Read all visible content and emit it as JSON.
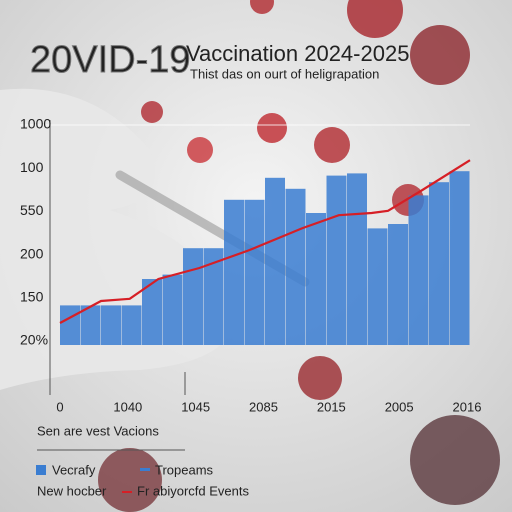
{
  "chart_data": {
    "type": "bar-line",
    "title_prefix": "20VID-19",
    "title": "Vaccination 2024-2025",
    "subtitle": "Thist das on ourt of heligrapation",
    "y_axis_labels": [
      "1000",
      "100",
      "550",
      "200",
      "150",
      "20%"
    ],
    "x_axis_labels": [
      "0",
      "1040",
      "1045",
      "2085",
      "2015",
      "2005",
      "2016"
    ],
    "ylim": [
      0,
      100
    ],
    "xlim": [
      0,
      100
    ],
    "grid": true,
    "series": [
      {
        "name": "Vecrafy",
        "color": "#3a7dd1",
        "kind": "bar",
        "values": [
          18,
          18,
          18,
          18,
          30,
          32,
          44,
          44,
          66,
          66,
          76,
          71,
          60,
          77,
          78,
          53,
          55,
          68,
          74,
          79
        ]
      },
      {
        "name": "Fr abiyorcfd Events",
        "color": "#d61f26",
        "kind": "line",
        "x": [
          0,
          10,
          17,
          24,
          34,
          46,
          59,
          68,
          76,
          80,
          88,
          100
        ],
        "values": [
          10,
          20,
          21,
          30,
          35,
          43,
          53,
          59,
          60,
          61,
          70,
          84
        ]
      }
    ],
    "caption": "Sen are vest Vacions",
    "legend_extra": [
      {
        "label": "Tropeams",
        "color": "#3a7dd1"
      },
      {
        "label": "New hocber"
      }
    ]
  }
}
